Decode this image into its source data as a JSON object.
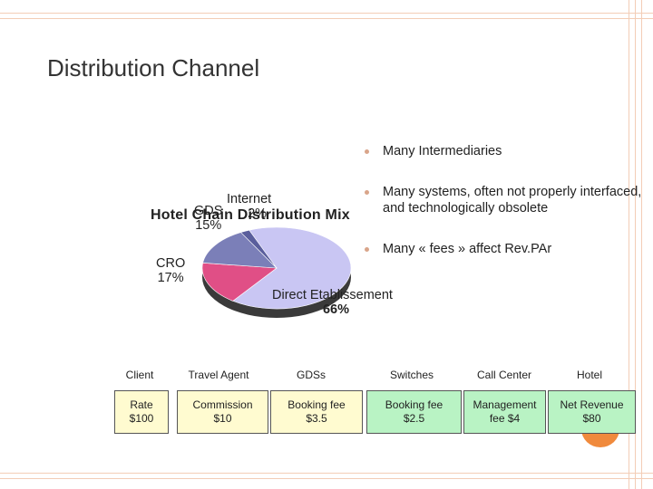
{
  "slide": {
    "title": "Distribution Channel",
    "accent_color": "#f08a3c",
    "frame_color": "#f3cdb6"
  },
  "bullets": [
    "Many Intermediaries",
    "Many systems, often not properly interfaced, and technologically obsolete",
    "Many « fees » affect Rev.PAr"
  ],
  "pie": {
    "title": "Hotel Chain Distribution Mix",
    "slices": [
      {
        "name": "Direct Etablissement",
        "pct": "66%",
        "value": 66,
        "color": "#c9c6f3"
      },
      {
        "name": "CRO",
        "pct": "17%",
        "value": 17,
        "color": "#e04f86"
      },
      {
        "name": "GDS",
        "pct": "15%",
        "value": 15,
        "color": "#7b7fb8"
      },
      {
        "name": "Internet",
        "pct": "2%",
        "value": 2,
        "color": "#5a5e9c"
      }
    ]
  },
  "flow": {
    "headers": [
      "Client",
      "Travel Agent",
      "GDSs",
      "Switches",
      "Call Center",
      "Hotel"
    ],
    "boxes": [
      {
        "line1": "Rate",
        "line2": "$100",
        "color": "#fffbd0"
      },
      {
        "line1": "Commission",
        "line2": "$10",
        "color": "#fffbd0"
      },
      {
        "line1": "Booking fee",
        "line2": "$3.5",
        "color": "#fffbd0"
      },
      {
        "line1": "Booking fee",
        "line2": "$2.5",
        "color": "#b9f3c4"
      },
      {
        "line1": "Management",
        "line2": "fee $4",
        "color": "#b9f3c4"
      },
      {
        "line1": "Net Revenue",
        "line2": "$80",
        "color": "#b9f3c4"
      }
    ]
  }
}
